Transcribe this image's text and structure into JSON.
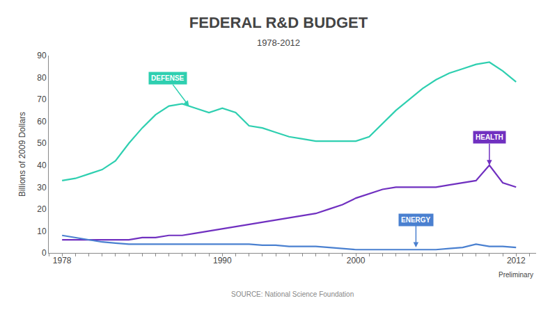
{
  "chart_data": {
    "type": "line",
    "title": "FEDERAL R&D BUDGET",
    "subtitle": "1978-2012",
    "ylabel": "Billions of 2009 Dollars",
    "source": "SOURCE: National Science Foundation",
    "x": [
      1978,
      1979,
      1980,
      1981,
      1982,
      1983,
      1984,
      1985,
      1986,
      1987,
      1988,
      1989,
      1990,
      1991,
      1992,
      1993,
      1994,
      1995,
      1996,
      1997,
      1998,
      1999,
      2000,
      2001,
      2002,
      2003,
      2004,
      2005,
      2006,
      2007,
      2008,
      2009,
      2010,
      2011,
      2012
    ],
    "series": [
      {
        "name": "DEFENSE",
        "color": "#2ecfb0",
        "values": [
          33,
          34,
          36,
          38,
          42,
          50,
          57,
          63,
          67,
          68,
          66,
          64,
          66,
          64,
          58,
          57,
          55,
          53,
          52,
          51,
          51,
          51,
          51,
          53,
          59,
          65,
          70,
          75,
          79,
          82,
          84,
          86,
          87,
          83,
          78
        ]
      },
      {
        "name": "HEALTH",
        "color": "#7030c0",
        "values": [
          6,
          6,
          6,
          6,
          6,
          6,
          7,
          7,
          8,
          8,
          9,
          10,
          11,
          12,
          13,
          14,
          15,
          16,
          17,
          18,
          20,
          22,
          25,
          27,
          29,
          30,
          30,
          30,
          30,
          31,
          32,
          33,
          40,
          32,
          30
        ]
      },
      {
        "name": "ENERGY",
        "color": "#4a80d0",
        "values": [
          8,
          7,
          6,
          5,
          4.5,
          4,
          4,
          4,
          4,
          4,
          4,
          4,
          4,
          4,
          4,
          3.5,
          3.5,
          3,
          3,
          3,
          2.5,
          2,
          1.5,
          1.5,
          1.5,
          1.5,
          1.5,
          1.5,
          1.5,
          2,
          2.5,
          4,
          3,
          3,
          2.5
        ]
      }
    ],
    "annotations": [
      {
        "text": "DEFENSE",
        "x": 1987.5,
        "y": 67
      },
      {
        "text": "HEALTH",
        "x": 2010.0,
        "y": 40
      },
      {
        "text": "ENERGY",
        "x": 2004.5,
        "y": 2.5
      },
      {
        "text": "Preliminary",
        "x": 2012
      }
    ],
    "xlim": [
      1977,
      2013.5
    ],
    "xticks": [
      1978,
      1990,
      2000,
      2012
    ],
    "ylim": [
      0,
      90
    ],
    "yticks": [
      0,
      10,
      20,
      30,
      40,
      50,
      60,
      70,
      80,
      90
    ],
    "grid": false
  }
}
